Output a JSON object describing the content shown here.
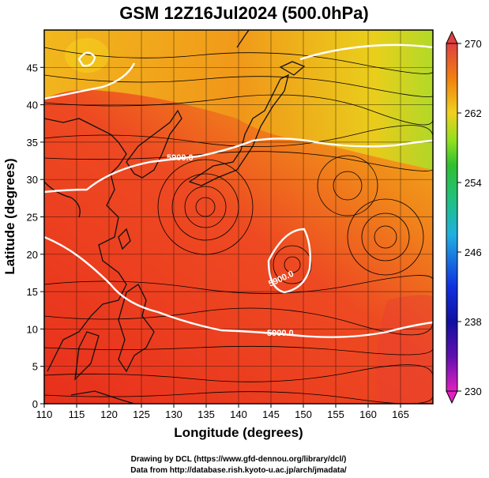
{
  "title": "GSM 12Z16Jul2024 (500.0hPa)",
  "x_axis": {
    "label": "Longitude (degrees)",
    "range": [
      110,
      170
    ],
    "ticks": [
      "110",
      "115",
      "120",
      "125",
      "130",
      "135",
      "140",
      "145",
      "150",
      "155",
      "160",
      "165"
    ]
  },
  "y_axis": {
    "label": "Latitude (degrees)",
    "range": [
      0,
      50
    ],
    "ticks": [
      "0",
      "5",
      "10",
      "15",
      "20",
      "25",
      "30",
      "35",
      "40",
      "45"
    ]
  },
  "colorbar": {
    "ticks": [
      "230",
      "238",
      "246",
      "254",
      "262",
      "270"
    ],
    "range": [
      230,
      270
    ],
    "colors": [
      "#e020c0",
      "#1010a0",
      "#1060e0",
      "#20c0e0",
      "#20c040",
      "#90e020",
      "#f0e020",
      "#f09010",
      "#f05020",
      "#e04040"
    ]
  },
  "contour_labels": [
    "5900.0",
    "5900.0",
    "5900.0"
  ],
  "credits": {
    "line1": "Drawing by DCL (https://www.gfd-dennou.org/library/dcl/)",
    "line2": "Data from http://database.rish.kyoto-u.ac.jp/arch/jmadata/"
  }
}
